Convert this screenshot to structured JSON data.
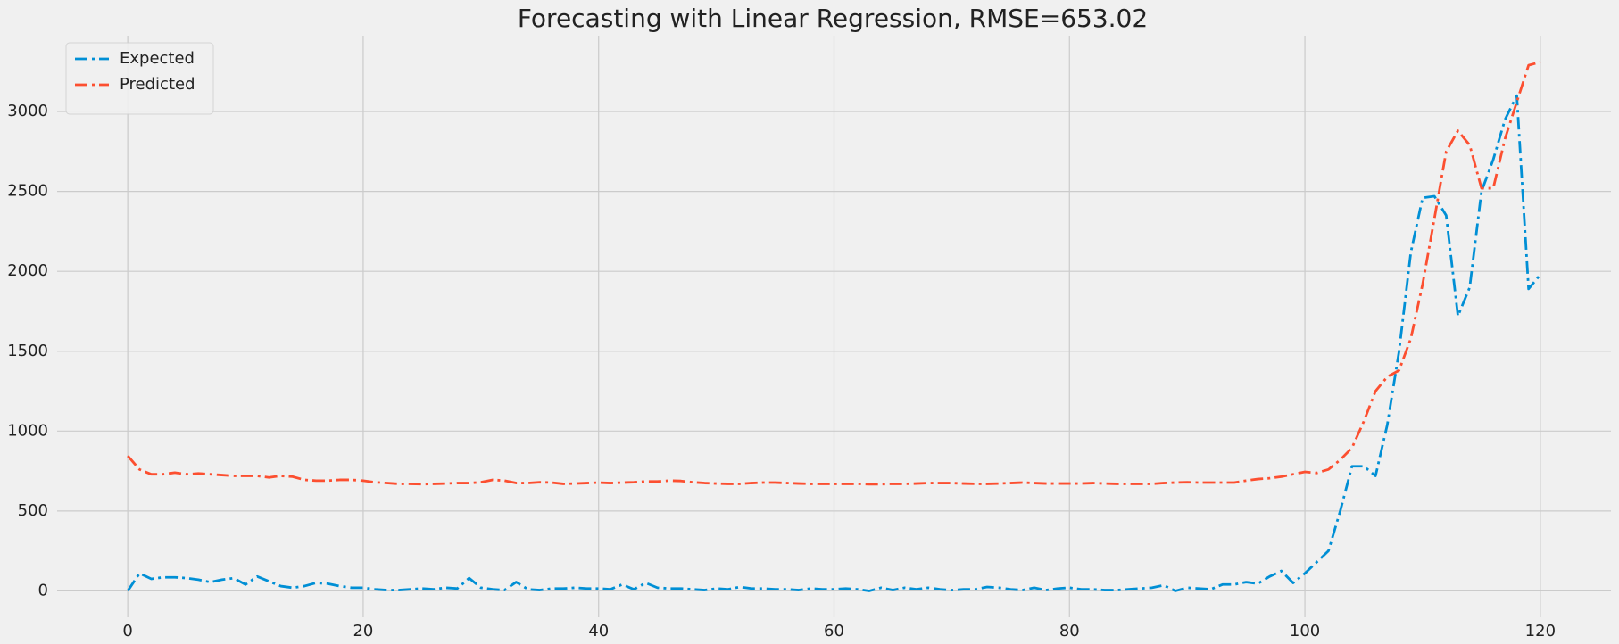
{
  "chart_data": {
    "type": "line",
    "title": "Forecasting with Linear Regression, RMSE=653.02",
    "x": [
      0,
      1,
      2,
      3,
      4,
      5,
      6,
      7,
      8,
      9,
      10,
      11,
      12,
      13,
      14,
      15,
      16,
      17,
      18,
      19,
      20,
      21,
      22,
      23,
      24,
      25,
      26,
      27,
      28,
      29,
      30,
      31,
      32,
      33,
      34,
      35,
      36,
      37,
      38,
      39,
      40,
      41,
      42,
      43,
      44,
      45,
      46,
      47,
      48,
      49,
      50,
      51,
      52,
      53,
      54,
      55,
      56,
      57,
      58,
      59,
      60,
      61,
      62,
      63,
      64,
      65,
      66,
      67,
      68,
      69,
      70,
      71,
      72,
      73,
      74,
      75,
      76,
      77,
      78,
      79,
      80,
      81,
      82,
      83,
      84,
      85,
      86,
      87,
      88,
      89,
      90,
      91,
      92,
      93,
      94,
      95,
      96,
      97,
      98,
      99,
      100,
      101,
      102,
      103,
      104,
      105,
      106,
      107,
      108,
      109,
      110,
      111,
      112,
      113,
      114,
      115,
      116,
      117,
      118,
      119,
      120
    ],
    "series": [
      {
        "name": "Expected",
        "color": "#008fd5",
        "values": [
          0,
          110,
          75,
          85,
          85,
          80,
          70,
          55,
          70,
          80,
          40,
          90,
          60,
          30,
          20,
          30,
          50,
          45,
          30,
          20,
          20,
          10,
          5,
          5,
          10,
          15,
          10,
          20,
          15,
          80,
          20,
          10,
          5,
          55,
          10,
          5,
          15,
          15,
          20,
          15,
          15,
          10,
          40,
          10,
          50,
          20,
          15,
          15,
          10,
          5,
          15,
          10,
          25,
          15,
          15,
          10,
          10,
          5,
          15,
          10,
          10,
          15,
          10,
          0,
          20,
          5,
          20,
          10,
          20,
          10,
          5,
          10,
          10,
          25,
          20,
          10,
          5,
          20,
          5,
          15,
          20,
          10,
          10,
          5,
          5,
          10,
          15,
          20,
          35,
          0,
          20,
          15,
          10,
          40,
          40,
          55,
          45,
          90,
          125,
          50,
          110,
          180,
          250,
          500,
          780,
          780,
          720,
          1040,
          1500,
          2120,
          2460,
          2470,
          2350,
          1720,
          1900,
          2500,
          2700,
          2950,
          3100,
          1890,
          1980
        ]
      },
      {
        "name": "Predicted",
        "color": "#fc4f30",
        "values": [
          845,
          760,
          730,
          730,
          740,
          730,
          735,
          730,
          725,
          720,
          720,
          720,
          710,
          720,
          715,
          695,
          690,
          690,
          695,
          695,
          690,
          680,
          675,
          670,
          670,
          668,
          670,
          672,
          675,
          675,
          680,
          695,
          690,
          675,
          675,
          680,
          678,
          670,
          672,
          675,
          678,
          675,
          678,
          680,
          685,
          685,
          690,
          688,
          680,
          675,
          672,
          670,
          670,
          675,
          678,
          678,
          675,
          672,
          670,
          670,
          670,
          670,
          670,
          668,
          668,
          670,
          670,
          672,
          675,
          675,
          675,
          672,
          670,
          670,
          672,
          675,
          678,
          675,
          672,
          672,
          672,
          672,
          675,
          672,
          670,
          670,
          670,
          670,
          675,
          678,
          680,
          678,
          678,
          678,
          678,
          690,
          700,
          705,
          715,
          730,
          745,
          738,
          760,
          820,
          895,
          1060,
          1250,
          1340,
          1380,
          1580,
          1920,
          2330,
          2750,
          2880,
          2790,
          2520,
          2520,
          2830,
          3060,
          3290,
          3310
        ]
      }
    ],
    "xlim": [
      -6,
      126
    ],
    "ylim": [
      -165,
      3475
    ],
    "xticks": [
      0,
      20,
      40,
      60,
      80,
      100,
      120
    ],
    "yticks": [
      0,
      500,
      1000,
      1500,
      2000,
      2500,
      3000
    ],
    "grid": true,
    "legend": "upper left"
  }
}
